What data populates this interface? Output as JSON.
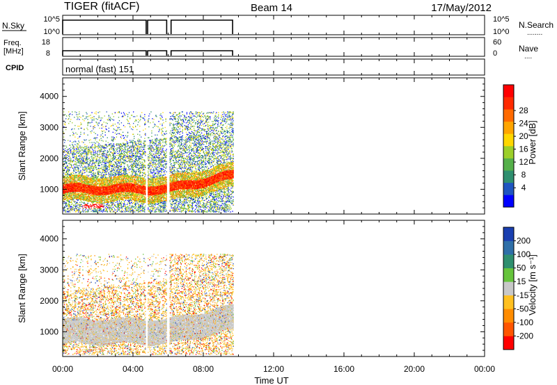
{
  "header": {
    "radar_title": "TIGER (fitACF)",
    "beam_label": "Beam 14",
    "date_label": "17/May/2012"
  },
  "strip_panels": {
    "nsky": {
      "left_label": "N.Sky",
      "left_ticks": [
        "10^5",
        "10^0"
      ],
      "right_ticks": [
        "10^5",
        "10^0"
      ],
      "right_label": "N.Search",
      "right_dots": "........",
      "series": [
        {
          "from": "00:00",
          "to": "04:45",
          "level": "high"
        },
        {
          "from": "04:50",
          "to": "05:55",
          "level": "high"
        },
        {
          "from": "06:10",
          "to": "09:40",
          "level": "high"
        }
      ]
    },
    "freq": {
      "left_label_line1": "Freq.",
      "left_label_line2": "[MHz]",
      "left_ticks": [
        "18",
        "8"
      ],
      "right_ticks": [
        "60",
        "0"
      ],
      "right_label": "Nave",
      "right_dots": "....",
      "series": [
        {
          "from": "00:00",
          "to": "04:45",
          "value_mhz": 10
        },
        {
          "from": "04:50",
          "to": "05:55",
          "value_mhz": 10
        },
        {
          "from": "06:10",
          "to": "09:40",
          "value_mhz": 10
        }
      ]
    },
    "cpid": {
      "left_label": "CPID",
      "text": "normal (fast) 151"
    }
  },
  "chart_data": [
    {
      "type": "heatmap",
      "name": "power",
      "ylabel": "Slant Range [km]",
      "yticks": [
        "1000",
        "2000",
        "3000",
        "4000"
      ],
      "ylim": [
        200,
        4600
      ],
      "xlim_hours": [
        0,
        24
      ],
      "colorbar_label": "Power [dB]",
      "colorbar_ticks": [
        "4",
        "8",
        "12",
        "16",
        "20",
        "24",
        "28"
      ],
      "colorbar_colors": [
        "#0000ff",
        "#1f55c0",
        "#2f8f6f",
        "#55b04a",
        "#9ccf2a",
        "#ffd700",
        "#ffa500",
        "#ff6a00",
        "#ff2a00",
        "#ff0000"
      ],
      "data_hours": [
        0.0,
        9.7
      ]
    },
    {
      "type": "heatmap",
      "name": "velocity",
      "ylabel": "Slant Range [km]",
      "yticks": [
        "1000",
        "2000",
        "3000",
        "4000"
      ],
      "ylim": [
        200,
        4600
      ],
      "xlim_hours": [
        0,
        24
      ],
      "colorbar_label": "Velocity [m s⁻¹]",
      "colorbar_ticks": [
        "200",
        "100",
        "50",
        "15",
        "-15",
        "-50",
        "-100",
        "-200"
      ],
      "colorbar_colors": [
        "#1a3fb0",
        "#2f6fa8",
        "#2f8f6f",
        "#66c43c",
        "#c8c8c8",
        "#ffc020",
        "#ff8c00",
        "#ff5500",
        "#ff0000"
      ],
      "data_hours": [
        0.0,
        9.7
      ]
    }
  ],
  "xaxis": {
    "label": "Time UT",
    "ticks": [
      "00:00",
      "04:00",
      "08:00",
      "12:00",
      "16:00",
      "20:00",
      "00:00"
    ]
  }
}
